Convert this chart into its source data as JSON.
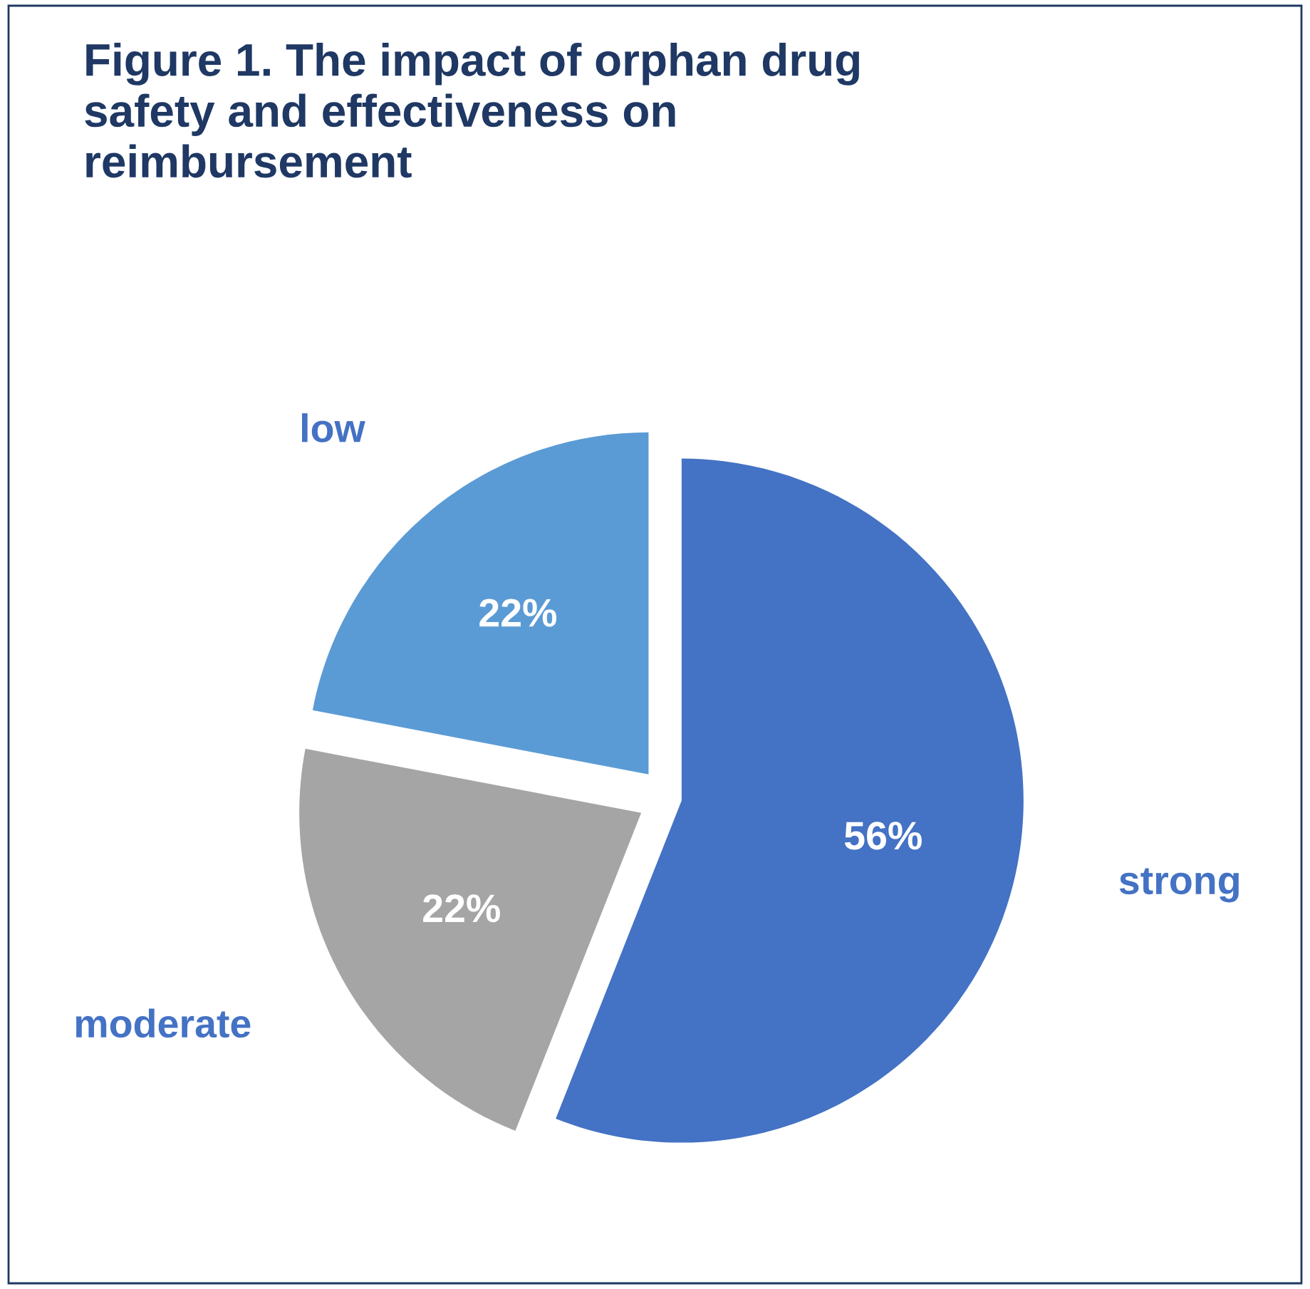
{
  "chart_data": {
    "type": "pie",
    "title": "Figure 1. The impact of orphan drug\nsafety and effectiveness on\nreimbursement",
    "categories": [
      "strong",
      "moderate",
      "low"
    ],
    "values": [
      56,
      22,
      22
    ],
    "colors": [
      "#4472c4",
      "#a5a5a5",
      "#5b9bd5"
    ],
    "value_labels": [
      "56%",
      "22%",
      "22%"
    ]
  }
}
